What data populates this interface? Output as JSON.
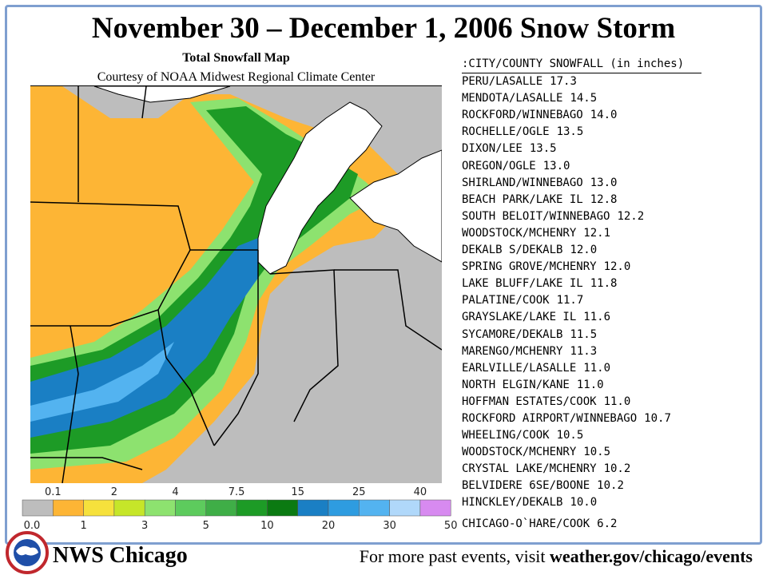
{
  "header": {
    "title": "November 30 – December 1, 2006 Snow Storm",
    "map_title": "Total Snowfall Map",
    "credit": "Courtesy of NOAA Midwest Regional Climate Center"
  },
  "snowfall_list": {
    "heading": ":CITY/COUNTY SNOWFALL (in inches)",
    "entries": [
      {
        "place": "PERU/LASALLE",
        "amount": "17.3"
      },
      {
        "place": "MENDOTA/LASALLE",
        "amount": "14.5"
      },
      {
        "place": "ROCKFORD/WINNEBAGO",
        "amount": "14.0"
      },
      {
        "place": "ROCHELLE/OGLE",
        "amount": "13.5"
      },
      {
        "place": "DIXON/LEE",
        "amount": "13.5"
      },
      {
        "place": "OREGON/OGLE",
        "amount": "13.0"
      },
      {
        "place": "SHIRLAND/WINNEBAGO",
        "amount": "13.0"
      },
      {
        "place": "BEACH PARK/LAKE IL",
        "amount": "12.8"
      },
      {
        "place": "SOUTH BELOIT/WINNEBAGO",
        "amount": "12.2"
      },
      {
        "place": "WOODSTOCK/MCHENRY",
        "amount": "12.1"
      },
      {
        "place": "DEKALB S/DEKALB",
        "amount": "12.0"
      },
      {
        "place": "SPRING GROVE/MCHENRY",
        "amount": "12.0"
      },
      {
        "place": "LAKE BLUFF/LAKE IL",
        "amount": "11.8"
      },
      {
        "place": "PALATINE/COOK",
        "amount": "11.7"
      },
      {
        "place": "GRAYSLAKE/LAKE IL",
        "amount": "11.6"
      },
      {
        "place": "SYCAMORE/DEKALB",
        "amount": "11.5"
      },
      {
        "place": "MARENGO/MCHENRY",
        "amount": "11.3"
      },
      {
        "place": "EARLVILLE/LASALLE",
        "amount": "11.0"
      },
      {
        "place": "NORTH ELGIN/KANE",
        "amount": "11.0"
      },
      {
        "place": "HOFFMAN ESTATES/COOK",
        "amount": "11.0"
      },
      {
        "place": "ROCKFORD AIRPORT/WINNEBAGO",
        "amount": "10.7"
      },
      {
        "place": "WHEELING/COOK",
        "amount": "10.5"
      },
      {
        "place": "WOODSTOCK/MCHENRY",
        "amount": "10.5"
      },
      {
        "place": "CRYSTAL LAKE/MCHENRY",
        "amount": "10.2"
      },
      {
        "place": "BELVIDERE 6SE/BOONE",
        "amount": "10.2"
      },
      {
        "place": "HINCKLEY/DEKALB",
        "amount": "10.0"
      },
      {
        "place": "CHICAGO-O`HARE/COOK",
        "amount": "6.2"
      }
    ]
  },
  "legend": {
    "labels": [
      "0.0",
      "0.1",
      "1",
      "2",
      "3",
      "4",
      "5",
      "7.5",
      "10",
      "15",
      "20",
      "25",
      "30",
      "40",
      "50"
    ],
    "colors": [
      "#bdbdbd",
      "#fdb535",
      "#f6e13c",
      "#c6e629",
      "#8de26f",
      "#5dcb5d",
      "#3fae47",
      "#1d9b26",
      "#0b7a12",
      "#1a7fc4",
      "#2e9ce0",
      "#53b3f0",
      "#b0d8fa",
      "#d78af0"
    ]
  },
  "footer": {
    "office": "NWS Chicago",
    "prompt": "For more past events, visit",
    "link": "weather.gov/chicago/events"
  }
}
